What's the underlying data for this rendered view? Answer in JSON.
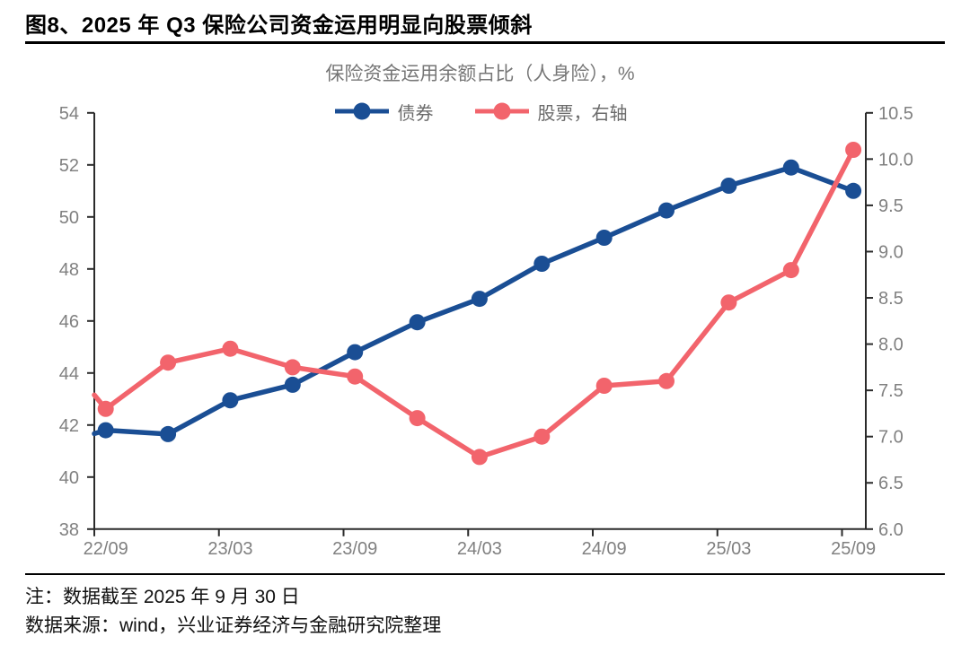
{
  "header": {
    "title": "图8、2025 年 Q3 保险公司资金运用明显向股票倾斜"
  },
  "footer": {
    "note": "注：数据截至 2025 年 9 月 30 日",
    "source": "数据来源：wind，兴业证券经济与金融研究院整理"
  },
  "colors": {
    "bond_blue": "#1A4E94",
    "stock_red": "#F2646C",
    "axis_line": "#2B2B2B",
    "axis_text": "#808080",
    "title_gray": "#767676"
  },
  "chart_data": {
    "type": "line",
    "title": "保险资金运用余额占比（人身险），%",
    "categories": [
      "22/09",
      "22/12",
      "23/03",
      "23/06",
      "23/09",
      "23/12",
      "24/03",
      "24/06",
      "24/09",
      "24/12",
      "25/03",
      "25/06",
      "25/09"
    ],
    "x_tick_labels": [
      "22/09",
      "23/03",
      "23/09",
      "24/03",
      "24/09",
      "25/03",
      "25/09"
    ],
    "series": [
      {
        "name": "债券",
        "axis": "left",
        "color": "#1A4E94",
        "values": [
          41.8,
          41.65,
          42.95,
          43.55,
          44.8,
          45.95,
          46.85,
          48.2,
          49.2,
          50.25,
          51.2,
          51.9,
          51.0
        ],
        "lead_in_value": 41.67
      },
      {
        "name": "股票，右轴",
        "axis": "right",
        "color": "#F2646C",
        "values": [
          7.3,
          7.8,
          7.95,
          7.75,
          7.65,
          7.2,
          6.78,
          7.0,
          7.55,
          7.6,
          8.45,
          8.8,
          10.1
        ],
        "lead_in_value": 7.45
      }
    ],
    "left_axis": {
      "min": 38,
      "max": 54,
      "tick_labels": [
        "54",
        "52",
        "50",
        "48",
        "46",
        "44",
        "42",
        "40",
        "38"
      ]
    },
    "right_axis": {
      "min": 6.0,
      "max": 10.5,
      "tick_labels": [
        "10.5",
        "10.0",
        "9.5",
        "9.0",
        "8.5",
        "8.0",
        "7.5",
        "7.0",
        "6.5",
        "6.0"
      ]
    },
    "legend_position": "top",
    "grid": false
  }
}
